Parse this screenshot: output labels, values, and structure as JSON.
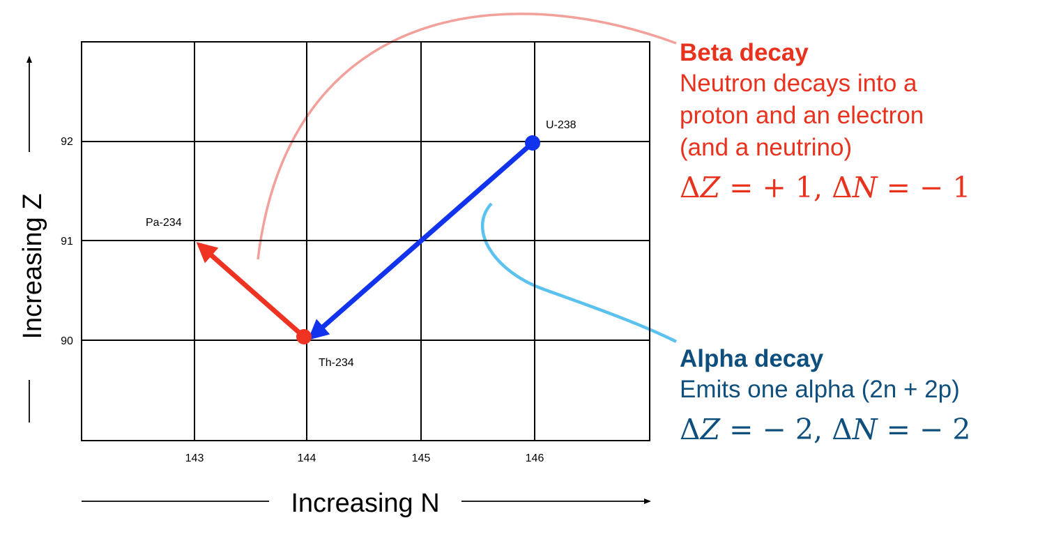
{
  "axes": {
    "x_title": "Increasing N",
    "y_title": "Increasing Z",
    "x_ticks": [
      "143",
      "144",
      "145",
      "146"
    ],
    "y_ticks": [
      "90",
      "91",
      "92"
    ]
  },
  "nuclides": [
    {
      "label": "U-238",
      "N": 146,
      "Z": 92,
      "color": "#1133ee"
    },
    {
      "label": "Th-234",
      "N": 144,
      "Z": 90,
      "color": "#ee3322"
    },
    {
      "label": "Pa-234",
      "N": 143,
      "Z": 91
    }
  ],
  "transitions": [
    {
      "from": "U-238",
      "to": "Th-234",
      "type": "alpha",
      "color": "#1133ee"
    },
    {
      "from": "Th-234",
      "to": "Pa-234",
      "type": "beta",
      "color": "#ee3322"
    }
  ],
  "beta": {
    "title": "Beta decay",
    "lines": [
      "Neutron decays into a",
      "proton and an electron",
      "(and a neutrino)"
    ],
    "eq_dz": "+ 1",
    "eq_dn": "− 1",
    "color": "#e8321e",
    "connector_color": "#f4a09a"
  },
  "alpha": {
    "title": "Alpha decay",
    "lines": [
      "Emits one alpha (2n + 2p)"
    ],
    "eq_dz": "− 2",
    "eq_dn": "− 2",
    "color": "#0f4f7e",
    "connector_color": "#5bc2f0"
  }
}
